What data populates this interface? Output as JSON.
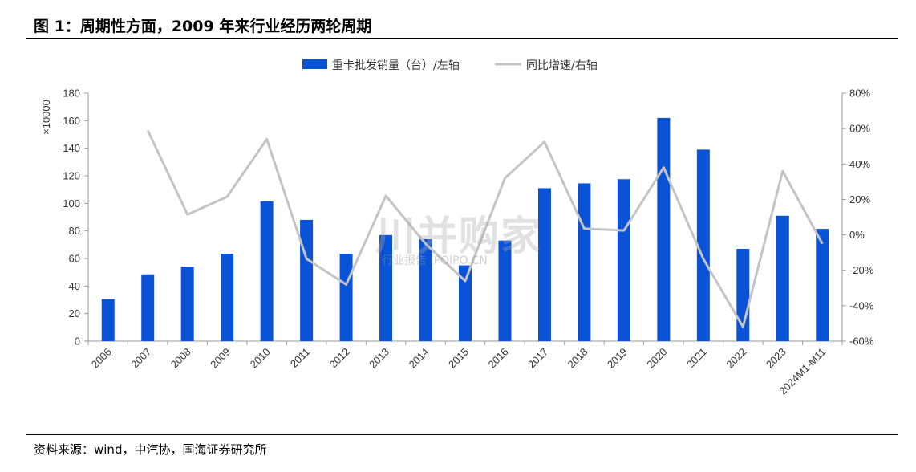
{
  "figure": {
    "title": "图 1：周期性方面，2009 年来行业经历两轮周期",
    "source": "资料来源：wind，中汽协，国海证券研究所",
    "watermark": "川并购家",
    "watermark_sub": "行业报告 IPOIPO.CN"
  },
  "colors": {
    "bar": "#0a52d6",
    "line": "#c4c4c4",
    "axis": "#999999"
  },
  "chart_data": {
    "type": "bar",
    "categories": [
      "2006",
      "2007",
      "2008",
      "2009",
      "2010",
      "2011",
      "2012",
      "2013",
      "2014",
      "2015",
      "2016",
      "2017",
      "2018",
      "2019",
      "2020",
      "2021",
      "2022",
      "2023",
      "2024M1-M11"
    ],
    "ylabel": "×10000",
    "ylim": [
      0,
      180
    ],
    "yticks": [
      0,
      20,
      40,
      60,
      80,
      100,
      120,
      140,
      160,
      180
    ],
    "y2lim": [
      -60,
      80
    ],
    "y2ticks": [
      -60,
      -40,
      -20,
      0,
      20,
      40,
      60,
      80
    ],
    "y2tick_labels": [
      "-60%",
      "-40%",
      "-20%",
      "0%",
      "20%",
      "40%",
      "60%",
      "80%"
    ],
    "legend_position": "top-center",
    "grid": false,
    "series": [
      {
        "name": "重卡批发销量（台）/左轴",
        "type": "bar",
        "axis": "left",
        "values": [
          30.5,
          48.5,
          54,
          63.5,
          101.5,
          88,
          63.5,
          77,
          74,
          55,
          73,
          111,
          114.5,
          117.5,
          162,
          139,
          67,
          91,
          81.5
        ]
      },
      {
        "name": "同比增速/右轴",
        "type": "line",
        "axis": "right",
        "values": [
          null,
          59,
          11.5,
          21.5,
          54,
          -13.5,
          -28,
          22,
          -5,
          -26,
          32,
          52.5,
          3.5,
          2.5,
          38,
          -13.5,
          -52,
          36,
          -5
        ]
      }
    ]
  }
}
